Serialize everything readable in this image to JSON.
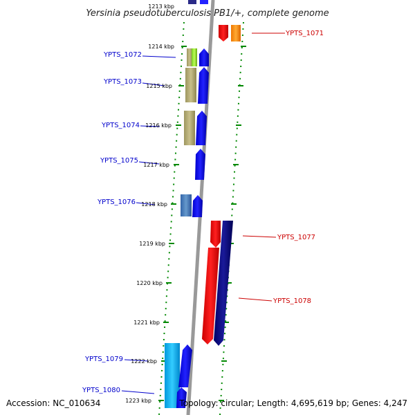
{
  "title": "Yersinia pseudotuberculosis PB1/+, complete genome",
  "footer": {
    "accession": "Accession: NC_010634",
    "topology": "Topology: circular; Length: 4,695,619 bp; Genes: 4,247"
  },
  "kbp_labels": [
    "1213 kbp",
    "1214 kbp",
    "1215 kbp",
    "1216 kbp",
    "1217 kbp",
    "1218 kbp",
    "1219 kbp",
    "1220 kbp",
    "1221 kbp",
    "1222 kbp",
    "1223 kbp"
  ],
  "genes_left": [
    "YPTS_1072",
    "YPTS_1073",
    "YPTS_1074",
    "YPTS_1075",
    "YPTS_1076",
    "YPTS_1079",
    "YPTS_1080"
  ],
  "genes_right": [
    "YPTS_1071",
    "YPTS_1077",
    "YPTS_1078"
  ],
  "colors": {
    "left_label": "#0000cc",
    "right_label": "#cc0000",
    "dotted_track": "#008800",
    "backbone": "#999999"
  }
}
